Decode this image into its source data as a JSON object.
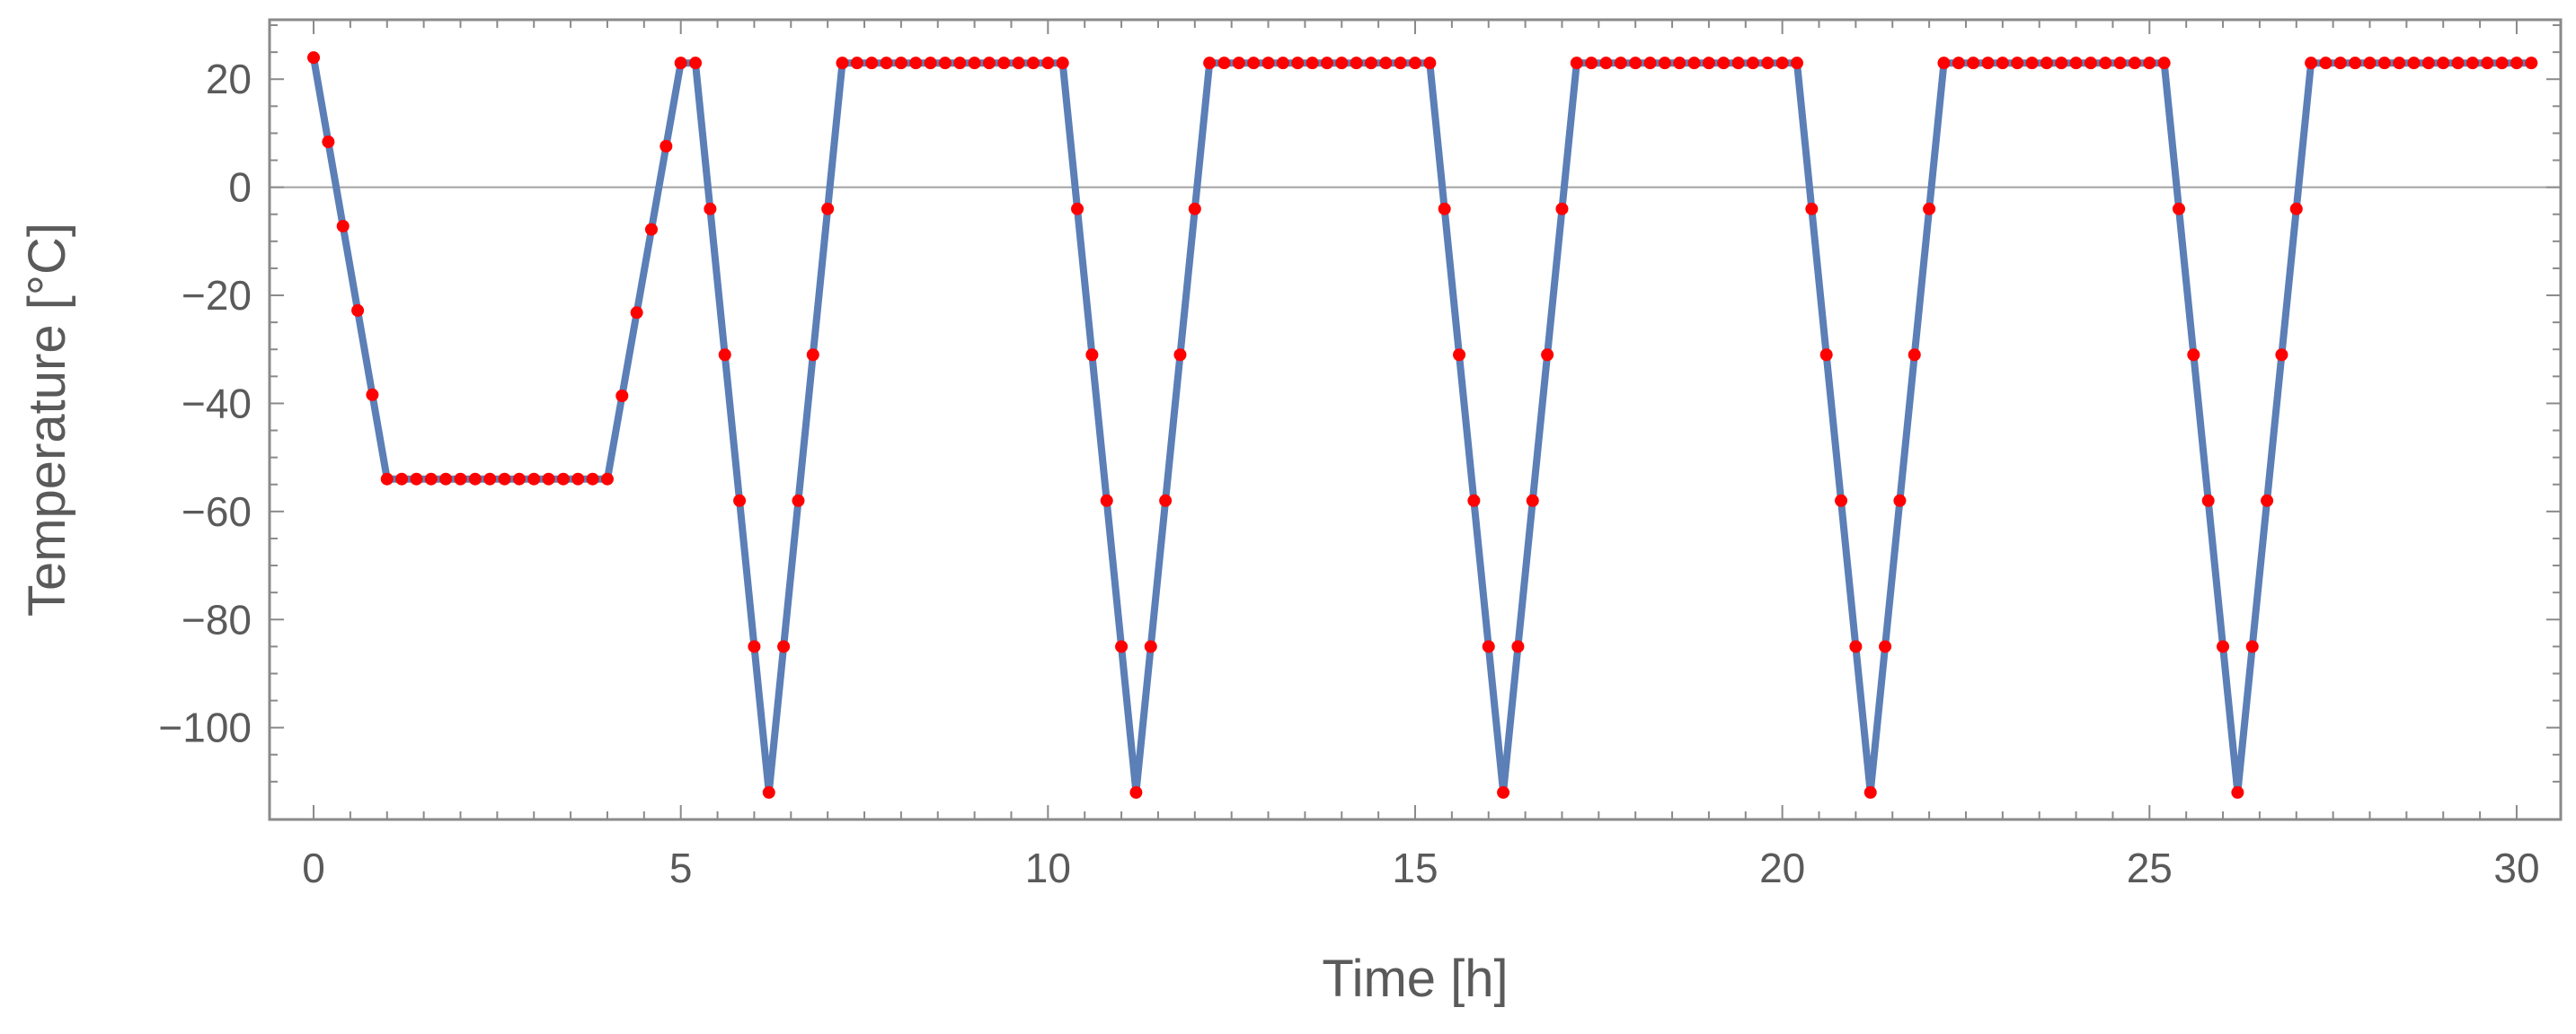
{
  "chart_data": {
    "type": "line",
    "title": "",
    "xlabel": "Time [h]",
    "ylabel": "Temperature [°C]",
    "xlim": [
      -0.6,
      30.6
    ],
    "ylim": [
      -117,
      31
    ],
    "xticks": [
      0,
      5,
      10,
      15,
      20,
      25,
      30
    ],
    "yticks": [
      20,
      0,
      -20,
      -40,
      -60,
      -80,
      -100
    ],
    "grid": false,
    "zero_line": true,
    "legend": "none",
    "colors": {
      "line": "#5b7fb6",
      "points": "#ff0000",
      "frame": "#8a8a8a",
      "zero_line": "#a0a0a0"
    },
    "series": [
      {
        "style": "line",
        "x": [
          0,
          1,
          4,
          5,
          5.2,
          6.2,
          7.2,
          10.2,
          11.2,
          12.2,
          15.2,
          16.2,
          17.2,
          20.2,
          21.2,
          22.2,
          25.2,
          26.2,
          27.2,
          30.2
        ],
        "y": [
          24,
          -54,
          -54,
          23,
          23,
          -112,
          23,
          23,
          -112,
          23,
          23,
          -112,
          23,
          23,
          -112,
          23,
          23,
          -112,
          23,
          23
        ]
      },
      {
        "style": "points",
        "x": [
          0,
          0.2,
          0.4,
          0.6,
          0.8,
          1,
          1.2,
          1.4,
          1.6,
          1.8,
          2,
          2.2,
          2.4,
          2.6,
          2.8,
          3,
          3.2,
          3.4,
          3.6,
          3.8,
          4,
          4.2,
          4.4,
          4.6,
          4.8,
          5,
          5.2,
          5.4,
          5.6,
          5.8,
          6,
          6.2,
          6.4,
          6.6,
          6.8,
          7,
          7.2,
          7.4,
          7.6,
          7.8,
          8,
          8.2,
          8.4,
          8.6,
          8.8,
          9,
          9.2,
          9.4,
          9.6,
          9.8,
          10,
          10.2,
          10.4,
          10.6,
          10.8,
          11,
          11.2,
          11.4,
          11.6,
          11.8,
          12,
          12.2,
          12.4,
          12.6,
          12.8,
          13,
          13.2,
          13.4,
          13.6,
          13.8,
          14,
          14.2,
          14.4,
          14.6,
          14.8,
          15,
          15.2,
          15.4,
          15.6,
          15.8,
          16,
          16.2,
          16.4,
          16.6,
          16.8,
          17,
          17.2,
          17.4,
          17.6,
          17.8,
          18,
          18.2,
          18.4,
          18.6,
          18.8,
          19,
          19.2,
          19.4,
          19.6,
          19.8,
          20,
          20.2,
          20.4,
          20.6,
          20.8,
          21,
          21.2,
          21.4,
          21.6,
          21.8,
          22,
          22.2,
          22.4,
          22.6,
          22.8,
          23,
          23.2,
          23.4,
          23.6,
          23.8,
          24,
          24.2,
          24.4,
          24.6,
          24.8,
          25,
          25.2,
          25.4,
          25.6,
          25.8,
          26,
          26.2,
          26.4,
          26.6,
          26.8,
          27,
          27.2,
          27.4,
          27.6,
          27.8,
          28,
          28.2,
          28.4,
          28.6,
          28.8,
          29,
          29.2,
          29.4,
          29.6,
          29.8,
          30,
          30.2
        ],
        "y": [
          24,
          8.4,
          -7.2,
          -22.8,
          -38.4,
          -54,
          -54,
          -54,
          -54,
          -54,
          -54,
          -54,
          -54,
          -54,
          -54,
          -54,
          -54,
          -54,
          -54,
          -54,
          -54,
          -38.6,
          -23.2,
          -7.8,
          7.6,
          23,
          23,
          -4,
          -31,
          -58,
          -85,
          -112,
          -85,
          -58,
          -31,
          -4,
          23,
          23,
          23,
          23,
          23,
          23,
          23,
          23,
          23,
          23,
          23,
          23,
          23,
          23,
          23,
          23,
          -4,
          -31,
          -58,
          -85,
          -112,
          -85,
          -58,
          -31,
          -4,
          23,
          23,
          23,
          23,
          23,
          23,
          23,
          23,
          23,
          23,
          23,
          23,
          23,
          23,
          23,
          23,
          -4,
          -31,
          -58,
          -85,
          -112,
          -85,
          -58,
          -31,
          -4,
          23,
          23,
          23,
          23,
          23,
          23,
          23,
          23,
          23,
          23,
          23,
          23,
          23,
          23,
          23,
          23,
          -4,
          -31,
          -58,
          -85,
          -112,
          -85,
          -58,
          -31,
          -4,
          23,
          23,
          23,
          23,
          23,
          23,
          23,
          23,
          23,
          23,
          23,
          23,
          23,
          23,
          23,
          23,
          -4,
          -31,
          -58,
          -85,
          -112,
          -85,
          -58,
          -31,
          -4,
          23,
          23,
          23,
          23,
          23,
          23,
          23,
          23,
          23,
          23,
          23,
          23,
          23,
          23,
          23,
          23
        ]
      }
    ]
  }
}
